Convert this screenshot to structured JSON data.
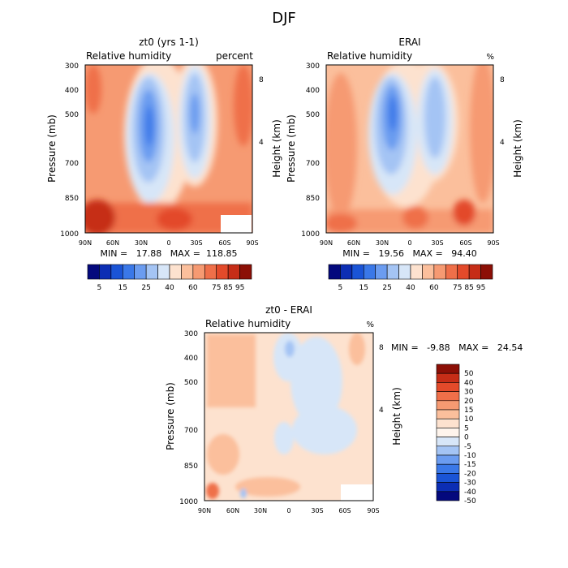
{
  "main_title": "DJF",
  "contour_colors": [
    "#04097d",
    "#0c2eb4",
    "#1a54d6",
    "#3a78e8",
    "#6b9cf0",
    "#a4c4f4",
    "#d7e6f8",
    "#fde2cf",
    "#fbbf9c",
    "#f69a72",
    "#ef6f49",
    "#e34a2a",
    "#c62d17",
    "#8c0f06"
  ],
  "diff_colors": [
    "#04097d",
    "#0c2eb4",
    "#1a54d6",
    "#3a78e8",
    "#6b9cf0",
    "#a4c4f4",
    "#d7e6f8",
    "#fef4ec",
    "#fde2cf",
    "#fbbf9c",
    "#f69a72",
    "#ef6f49",
    "#e34a2a",
    "#c62d17",
    "#8c0f06"
  ],
  "chart_data": [
    {
      "type": "heatmap",
      "title": "zt0 (yrs 1-1)",
      "subtitle_left": "Relative humidity",
      "subtitle_right": "percent",
      "ylabel": "Pressure (mb)",
      "ylabel_right": "Height (km)",
      "x_ticks": [
        "90N",
        "60N",
        "30N",
        "0",
        "30S",
        "60S",
        "90S"
      ],
      "y_ticks": [
        "300",
        "400",
        "500",
        "700",
        "850",
        "1000"
      ],
      "y_ticks_right": [
        "8",
        "4"
      ],
      "ylim": [
        1000,
        300
      ],
      "stats": "MIN =   17.88   MAX =  118.85",
      "min": 17.88,
      "max": 118.85,
      "colorbar_labels": [
        "5",
        "15",
        "25",
        "40",
        "60",
        "75",
        "85",
        "95"
      ],
      "description": "Dry minima near 20N and 25S in upper troposphere, humid tropics and near-surface"
    },
    {
      "type": "heatmap",
      "title": "ERAI",
      "subtitle_left": "Relative humidity",
      "subtitle_right": "%",
      "ylabel": "Pressure (mb)",
      "ylabel_right": "Height (km)",
      "x_ticks": [
        "90N",
        "60N",
        "30N",
        "0",
        "30S",
        "60S",
        "90S"
      ],
      "y_ticks": [
        "300",
        "400",
        "500",
        "700",
        "850",
        "1000"
      ],
      "y_ticks_right": [
        "8",
        "4"
      ],
      "ylim": [
        1000,
        300
      ],
      "stats": "MIN =   19.56   MAX =   94.40",
      "min": 19.56,
      "max": 94.4,
      "colorbar_labels": [
        "5",
        "15",
        "25",
        "40",
        "60",
        "75",
        "85",
        "95"
      ]
    },
    {
      "type": "heatmap",
      "title": "zt0 - ERAI",
      "subtitle_left": "Relative humidity",
      "subtitle_right": "%",
      "ylabel": "Pressure (mb)",
      "ylabel_right": "Height (km)",
      "x_ticks": [
        "90N",
        "60N",
        "30N",
        "0",
        "30S",
        "60S",
        "90S"
      ],
      "y_ticks": [
        "300",
        "400",
        "500",
        "700",
        "850",
        "1000"
      ],
      "y_ticks_right": [
        "8",
        "4"
      ],
      "ylim": [
        1000,
        300
      ],
      "stats": "MIN =   -9.88   MAX =   24.54",
      "min": -9.88,
      "max": 24.54,
      "colorbar_labels": [
        "50",
        "40",
        "30",
        "20",
        "15",
        "10",
        "5",
        "0",
        "-5",
        "-10",
        "-15",
        "-20",
        "-30",
        "-40",
        "-50"
      ]
    }
  ]
}
